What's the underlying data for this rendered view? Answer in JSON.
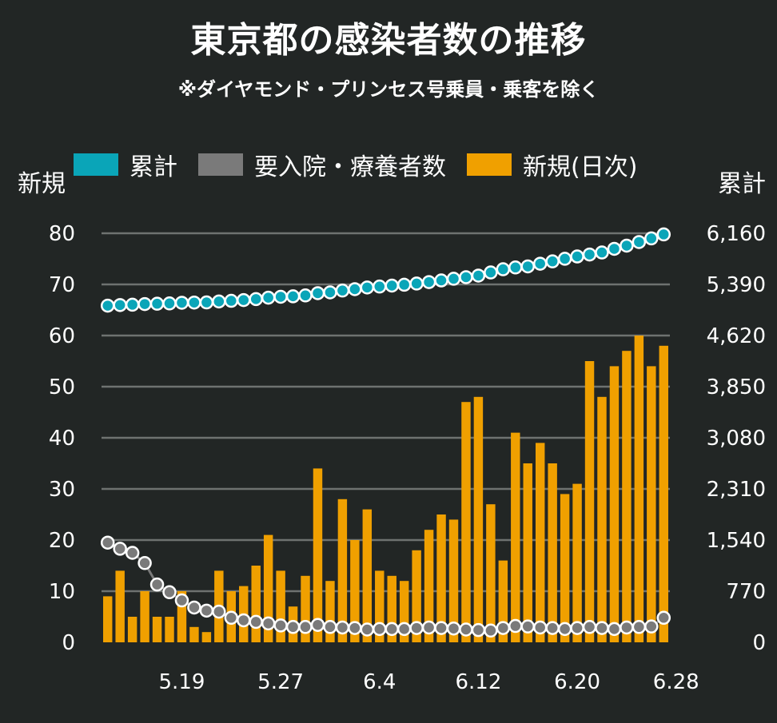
{
  "title": "東京都の感染者数の推移",
  "subtitle": "※ダイヤモンド・プリンセス号乗員・乗客を除く",
  "colors": {
    "background": "#222625",
    "cumulative": "#0aa5b8",
    "hospitalized": "#7a7a7a",
    "new": "#f0a000",
    "grid": "#6e7270"
  },
  "chart_data": {
    "type": "bar",
    "left_axis_label": "新規",
    "right_axis_label": "累計",
    "left_ticks": [
      "0",
      "10",
      "20",
      "30",
      "40",
      "50",
      "60",
      "70",
      "80"
    ],
    "right_ticks": [
      "0",
      "770",
      "1,540",
      "2,310",
      "3,080",
      "3,850",
      "4,620",
      "5,390",
      "6,160"
    ],
    "left_ylim": [
      0,
      80
    ],
    "right_ylim": [
      0,
      6160
    ],
    "x_tick_labels": [
      "5.19",
      "5.27",
      "6.4",
      "6.12",
      "6.20",
      "6.28"
    ],
    "x_tick_indices": [
      6,
      14,
      22,
      30,
      38,
      46
    ],
    "grid": true,
    "legend_position": "top",
    "series": [
      {
        "name": "累計",
        "kind": "line",
        "axis": "right",
        "values": [
          5070,
          5079,
          5084,
          5094,
          5099,
          5104,
          5114,
          5117,
          5119,
          5133,
          5143,
          5154,
          5169,
          5190,
          5204,
          5211,
          5224,
          5258,
          5270,
          5298,
          5318,
          5344,
          5358,
          5372,
          5385,
          5403,
          5425,
          5450,
          5475,
          5499,
          5523,
          5570,
          5618,
          5645,
          5661,
          5702,
          5737,
          5776,
          5811,
          5840,
          5871,
          5926,
          5974,
          6028,
          6083,
          6143
        ]
      },
      {
        "name": "要入院・療養者数",
        "kind": "line",
        "axis": "left",
        "values": [
          19.5,
          18.3,
          17.5,
          15.5,
          11.3,
          9.8,
          8.2,
          6.8,
          6.2,
          6.0,
          4.8,
          4.3,
          4.0,
          3.7,
          3.3,
          3.0,
          3.0,
          3.4,
          3.0,
          2.9,
          2.8,
          2.5,
          2.6,
          2.6,
          2.6,
          2.8,
          2.9,
          2.8,
          2.7,
          2.5,
          2.4,
          2.3,
          2.8,
          3.2,
          3.1,
          2.9,
          2.8,
          2.6,
          2.8,
          3.0,
          2.8,
          2.6,
          2.9,
          3.0,
          3.1,
          4.8
        ]
      },
      {
        "name": "新規(日次)",
        "kind": "bar",
        "axis": "left",
        "values": [
          9,
          14,
          5,
          10,
          5,
          5,
          10,
          3,
          2,
          14,
          10,
          11,
          15,
          21,
          14,
          7,
          13,
          34,
          12,
          28,
          20,
          26,
          14,
          13,
          12,
          18,
          22,
          25,
          24,
          47,
          48,
          27,
          16,
          41,
          35,
          39,
          35,
          29,
          31,
          55,
          48,
          54,
          57,
          60,
          54,
          58
        ]
      }
    ]
  }
}
